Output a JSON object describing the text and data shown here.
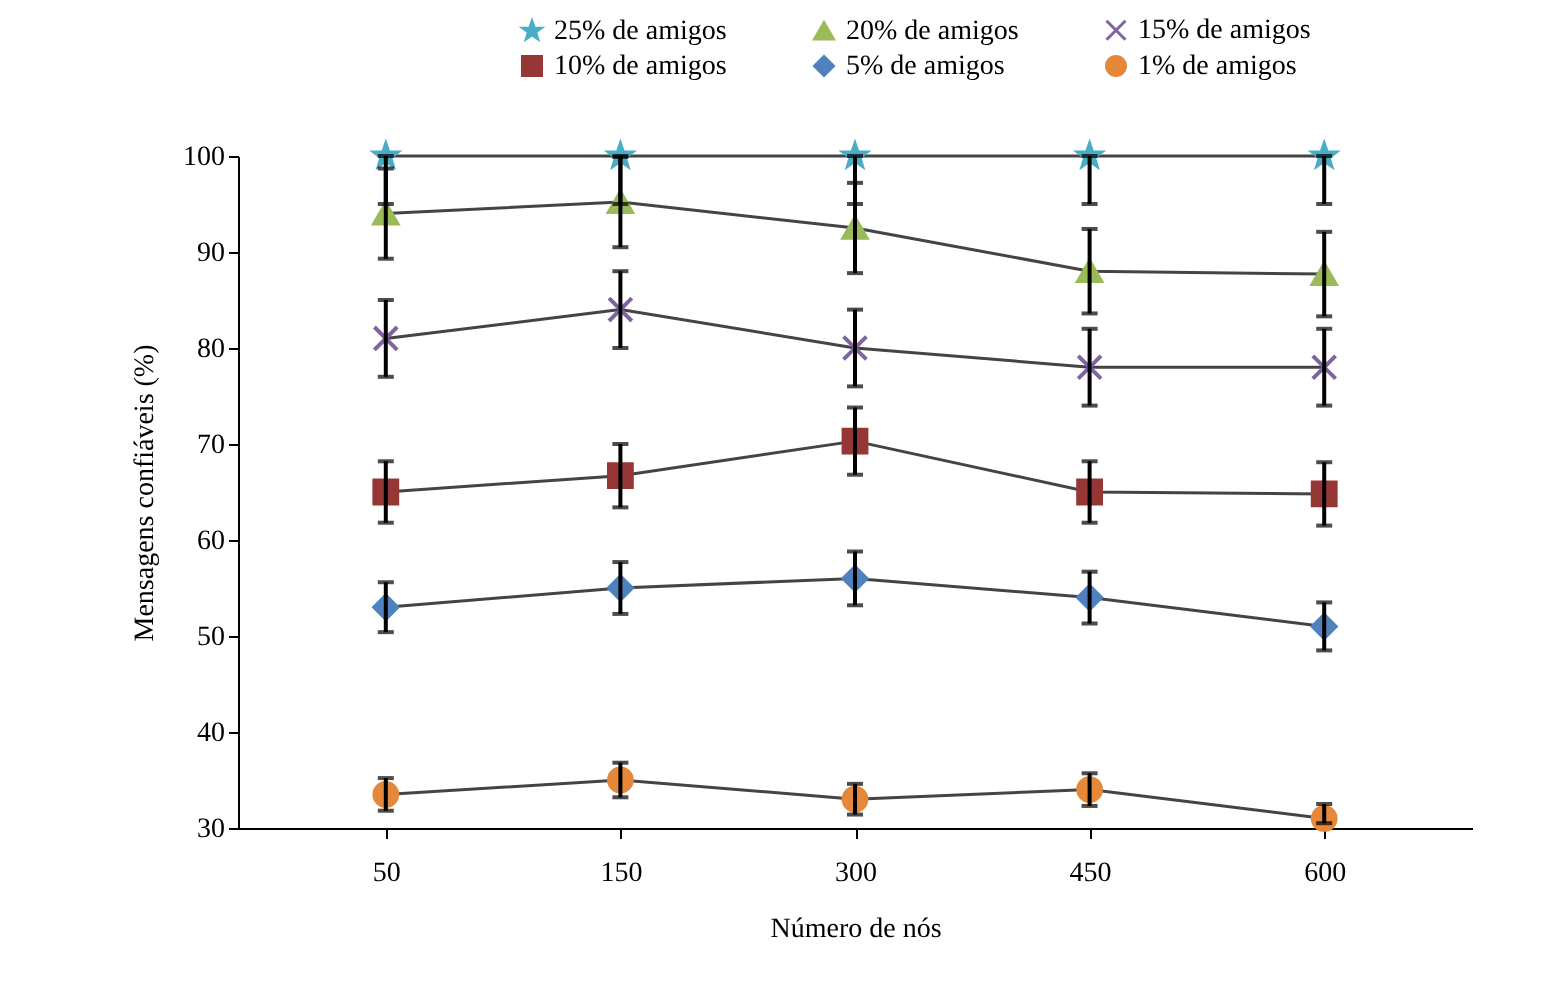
{
  "chart_data": {
    "type": "line",
    "xlabel": "Número de nós",
    "ylabel": "Mensagens confiáveis (%)",
    "categories": [
      "50",
      "150",
      "300",
      "450",
      "600"
    ],
    "ylim": [
      30,
      100
    ],
    "yticks": [
      30,
      40,
      50,
      60,
      70,
      80,
      90,
      100
    ],
    "grid": false,
    "legend": "top",
    "line_style": "solid",
    "series": [
      {
        "name": "25% de amigos",
        "color": "#4bacc6",
        "marker": "star",
        "values": [
          100,
          100,
          100,
          100,
          100
        ],
        "errors": [
          [
            95,
            100
          ],
          [
            95,
            100
          ],
          [
            95,
            100
          ],
          [
            95,
            100
          ],
          [
            95,
            100
          ]
        ]
      },
      {
        "name": "20% de amigos",
        "color": "#9bbb59",
        "marker": "triangle",
        "values": [
          94,
          95.2,
          92.5,
          88,
          87.7
        ],
        "errors": [
          4.7,
          4.7,
          4.7,
          4.4,
          4.4
        ]
      },
      {
        "name": "15% de amigos",
        "color": "#8064a2",
        "marker": "cross",
        "values": [
          81,
          84,
          80,
          78,
          78
        ],
        "errors": [
          4,
          4,
          4,
          4,
          4
        ]
      },
      {
        "name": "10% de amigos",
        "color": "#953735",
        "marker": "square",
        "values": [
          65,
          66.7,
          70.3,
          65,
          64.8
        ],
        "errors": [
          3.2,
          3.3,
          3.5,
          3.2,
          3.3
        ]
      },
      {
        "name": "5% de amigos",
        "color": "#4f81bd",
        "marker": "diamond",
        "values": [
          53,
          55,
          56,
          54,
          51
        ],
        "errors": [
          2.6,
          2.7,
          2.8,
          2.7,
          2.5
        ]
      },
      {
        "name": "1% de amigos",
        "color": "#e6883a",
        "marker": "circle",
        "values": [
          33.5,
          35,
          33,
          34,
          31
        ],
        "errors": [
          1.7,
          1.8,
          1.6,
          1.7,
          [
            30.5,
            32.5
          ]
        ]
      }
    ]
  }
}
